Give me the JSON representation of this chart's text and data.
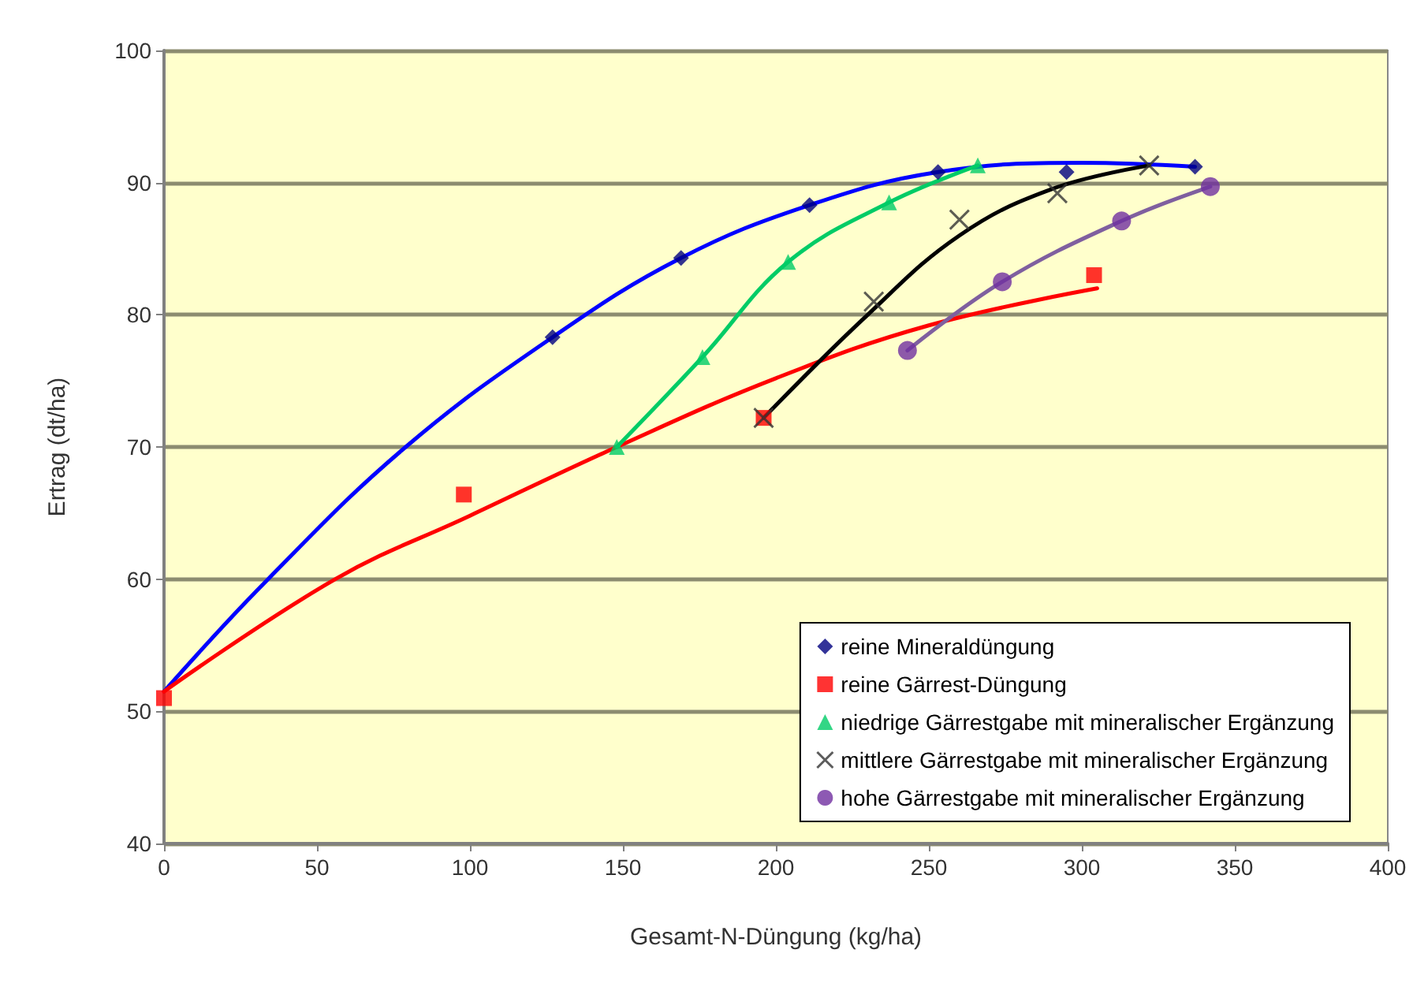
{
  "chart_data": {
    "type": "scatter",
    "xlabel": "Gesamt-N-Düngung (kg/ha)",
    "ylabel": "Ertrag (dt/ha)",
    "xlim": [
      0,
      400
    ],
    "xticks": [
      0,
      50,
      100,
      150,
      200,
      250,
      300,
      350,
      400
    ],
    "ylim": [
      40,
      100
    ],
    "yticks": [
      40,
      50,
      60,
      70,
      80,
      90,
      100
    ],
    "grid": "y",
    "legend": "bottom right",
    "series": [
      {
        "type": "line",
        "color": "#0000ff",
        "marker": "none",
        "x": [
          0,
          34,
          79,
          127,
          169,
          211,
          253,
          300,
          337
        ],
        "values": [
          51.5,
          60,
          70,
          78.3,
          84.3,
          88.3,
          90.8,
          91.5,
          91.2
        ]
      },
      {
        "type": "line",
        "color": "#ff0000",
        "marker": "none",
        "x": [
          0,
          56,
          100,
          148,
          200,
          250,
          305
        ],
        "values": [
          51.5,
          60,
          64.8,
          70,
          75.2,
          79.2,
          82
        ]
      },
      {
        "type": "line",
        "color": "#00cc66",
        "marker": "none",
        "x": [
          148,
          176,
          204,
          237,
          266
        ],
        "values": [
          70,
          76.8,
          84,
          88.5,
          91.3
        ]
      },
      {
        "type": "line",
        "color": "#000000",
        "marker": "none",
        "x": [
          196,
          230,
          260,
          290,
          322
        ],
        "values": [
          72.2,
          80,
          86,
          89.5,
          91.3
        ]
      },
      {
        "type": "line",
        "color": "#7f5f9f",
        "marker": "none",
        "x": [
          243,
          274,
          313,
          342
        ],
        "values": [
          77.3,
          82.5,
          87.1,
          89.7
        ]
      },
      {
        "name": "reine Mineraldüngung",
        "color": "#000080",
        "marker": "diamond",
        "x": [
          127,
          169,
          211,
          253,
          295,
          337
        ],
        "values": [
          78.3,
          84.3,
          88.3,
          90.8,
          90.8,
          91.2
        ]
      },
      {
        "name": "reine Gärrest-Düngung",
        "color": "#ff0000",
        "marker": "square",
        "x": [
          0,
          98,
          196,
          304
        ],
        "values": [
          51,
          66.4,
          72.2,
          83
        ]
      },
      {
        "name": "niedrige Gärrestgabe mit mineralischer Ergänzung",
        "color": "#00cc66",
        "marker": "triangle",
        "x": [
          148,
          176,
          204,
          237,
          266
        ],
        "values": [
          70,
          76.8,
          84,
          88.5,
          91.3
        ]
      },
      {
        "name": "mittlere Gärrestgabe mit mineralischer Ergänzung",
        "color": "#333333",
        "marker": "cross",
        "x": [
          196,
          232,
          260,
          292,
          322
        ],
        "values": [
          72.2,
          81,
          87.2,
          89.2,
          91.3
        ]
      },
      {
        "name": "hohe Gärrestgabe mit mineralischer Ergänzung",
        "color": "#7030a0",
        "marker": "circle",
        "x": [
          243,
          274,
          313,
          342
        ],
        "values": [
          77.3,
          82.5,
          87.1,
          89.7
        ]
      }
    ]
  }
}
